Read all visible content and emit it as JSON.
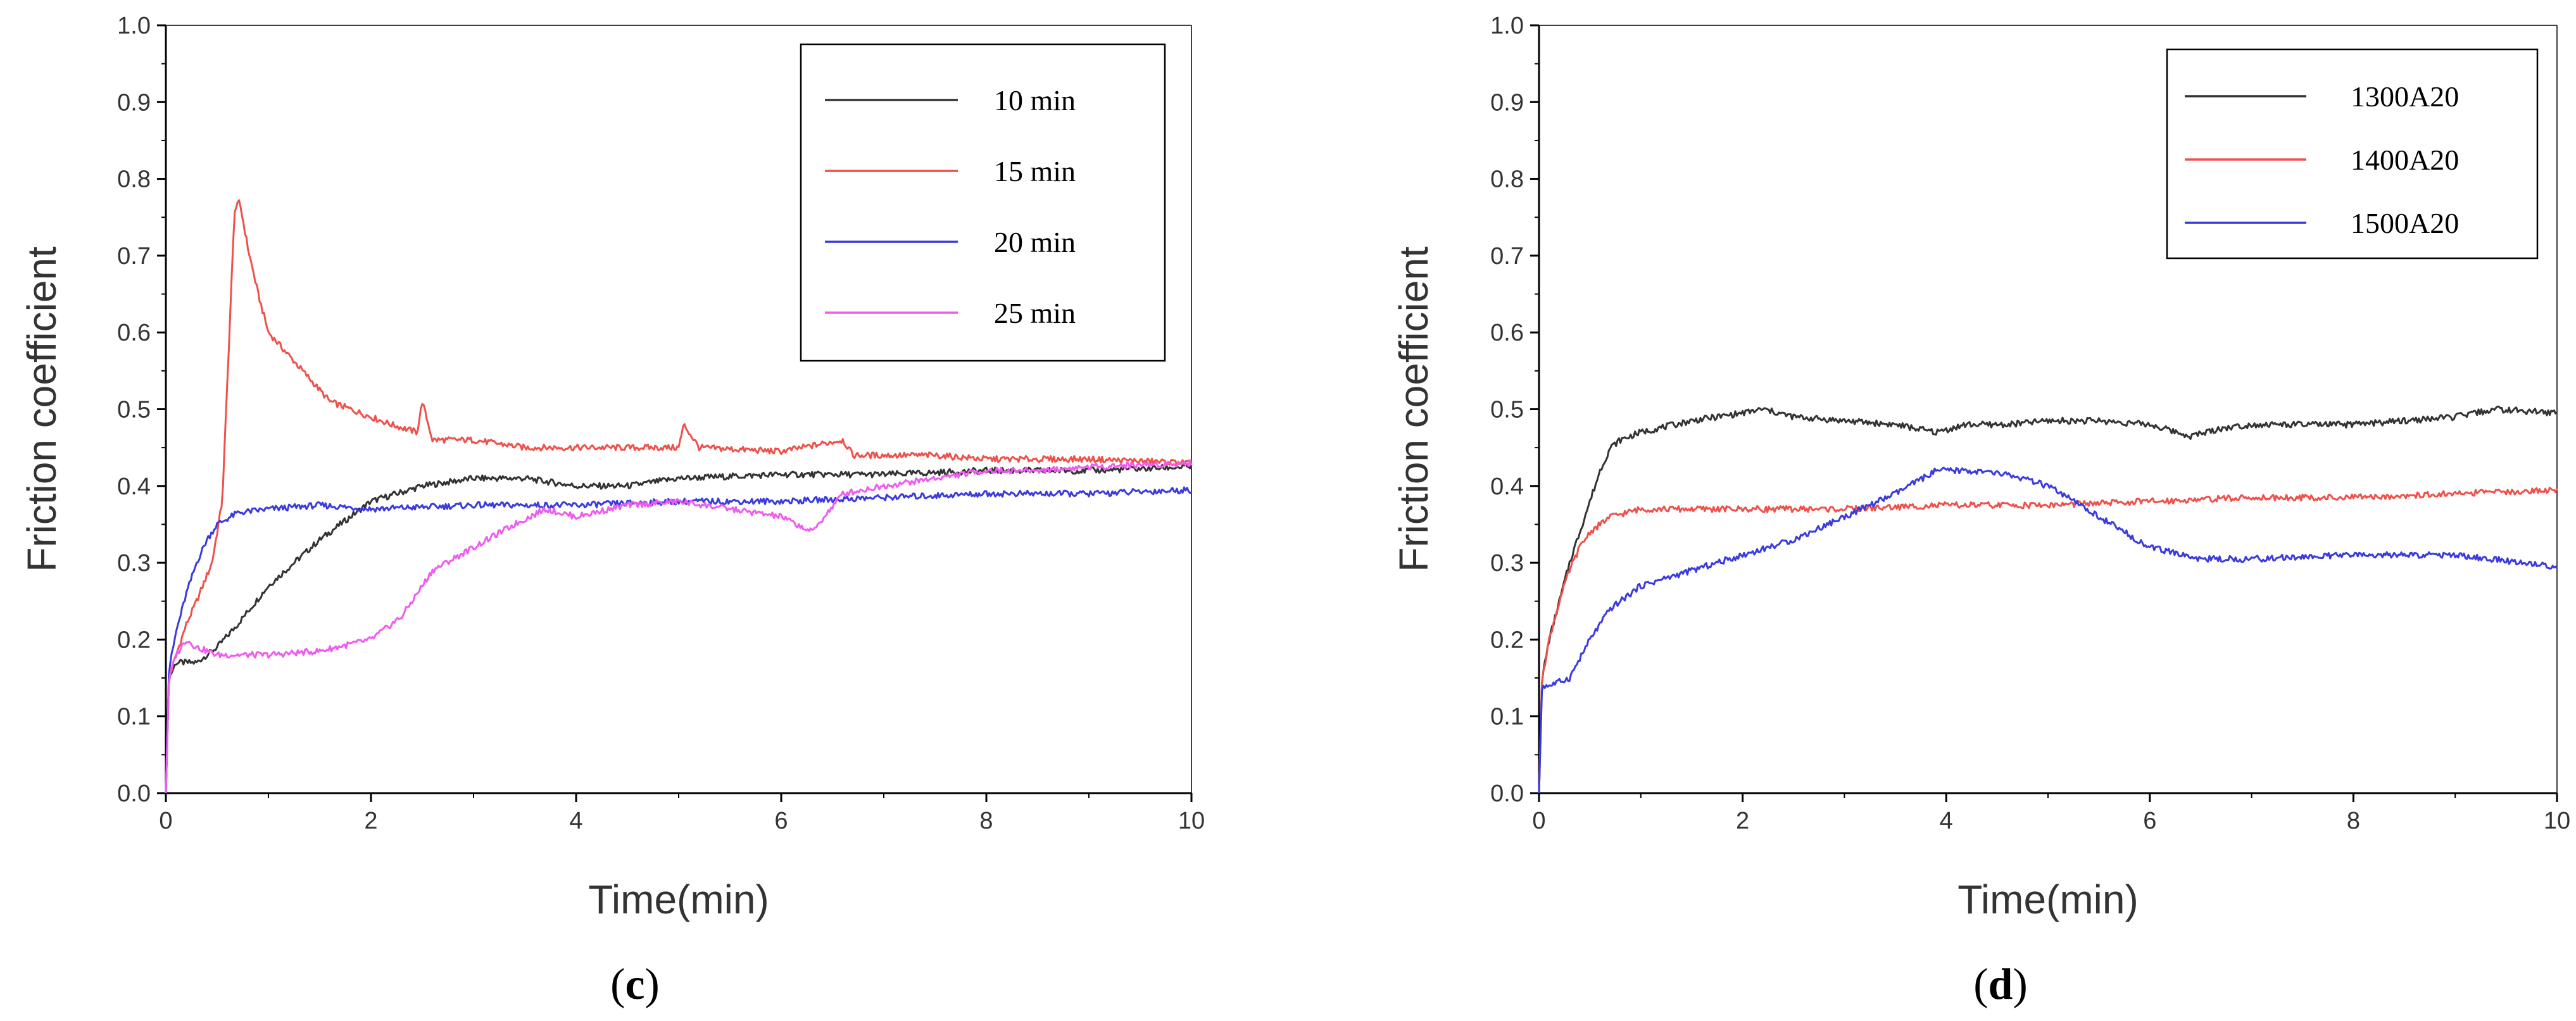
{
  "figure": {
    "panels": [
      {
        "caption_open": "(",
        "caption_letter": "c",
        "caption_close": ")"
      },
      {
        "caption_open": "(",
        "caption_letter": "d",
        "caption_close": ")"
      }
    ]
  },
  "chart_data": [
    {
      "type": "line",
      "title": "",
      "xlabel": "Time(min)",
      "ylabel": "Friction coefficient",
      "xlim": [
        0,
        10
      ],
      "ylim": [
        0,
        1.0
      ],
      "xticks": [
        0,
        2,
        4,
        6,
        8,
        10
      ],
      "xtick_labels": [
        "0",
        "2",
        "4",
        "6",
        "8",
        "10"
      ],
      "yticks": [
        0,
        0.1,
        0.2,
        0.3,
        0.4,
        0.5,
        0.6,
        0.7,
        0.8,
        0.9,
        1.0
      ],
      "ytick_labels": [
        "0.0",
        "0.1",
        "0.2",
        "0.3",
        "0.4",
        "0.5",
        "0.6",
        "0.7",
        "0.8",
        "0.9",
        "1.0"
      ],
      "grid": false,
      "legend_position": "top-right",
      "series": [
        {
          "name": "10 min",
          "color": "#333333",
          "x": [
            0,
            0.03,
            0.1,
            0.3,
            0.5,
            0.7,
            1.0,
            1.5,
            2.0,
            2.5,
            3.0,
            3.5,
            4.0,
            4.5,
            5.0,
            6.0,
            7.0,
            8.0,
            9.0,
            10.0
          ],
          "y": [
            0.0,
            0.15,
            0.17,
            0.17,
            0.19,
            0.22,
            0.27,
            0.33,
            0.38,
            0.4,
            0.41,
            0.41,
            0.4,
            0.4,
            0.41,
            0.415,
            0.415,
            0.42,
            0.42,
            0.425
          ]
        },
        {
          "name": "15 min",
          "color": "#f0504a",
          "x": [
            0,
            0.03,
            0.1,
            0.2,
            0.3,
            0.45,
            0.55,
            0.62,
            0.67,
            0.72,
            0.8,
            0.9,
            1.0,
            1.2,
            1.4,
            1.6,
            1.8,
            2.0,
            2.2,
            2.45,
            2.5,
            2.6,
            3.0,
            3.5,
            4.0,
            4.5,
            5.0,
            5.05,
            5.2,
            6.0,
            6.6,
            6.7,
            7.5,
            8.0,
            9.0,
            10.0
          ],
          "y": [
            0.0,
            0.15,
            0.18,
            0.22,
            0.25,
            0.3,
            0.38,
            0.6,
            0.76,
            0.77,
            0.71,
            0.65,
            0.6,
            0.57,
            0.54,
            0.51,
            0.5,
            0.49,
            0.48,
            0.47,
            0.51,
            0.46,
            0.46,
            0.45,
            0.45,
            0.45,
            0.45,
            0.48,
            0.45,
            0.445,
            0.46,
            0.44,
            0.44,
            0.435,
            0.435,
            0.43
          ]
        },
        {
          "name": "20 min",
          "color": "#3a3ae0",
          "x": [
            0,
            0.03,
            0.1,
            0.2,
            0.3,
            0.4,
            0.5,
            0.7,
            1.0,
            1.5,
            2.0,
            3.0,
            4.0,
            5.0,
            6.0,
            7.0,
            8.0,
            9.0,
            10.0
          ],
          "y": [
            0.0,
            0.16,
            0.21,
            0.26,
            0.3,
            0.33,
            0.35,
            0.365,
            0.37,
            0.375,
            0.37,
            0.375,
            0.375,
            0.38,
            0.38,
            0.385,
            0.39,
            0.39,
            0.395
          ]
        },
        {
          "name": "25 min",
          "color": "#f05af0",
          "x": [
            0,
            0.03,
            0.1,
            0.2,
            0.3,
            0.5,
            1.0,
            1.5,
            2.0,
            2.3,
            2.6,
            3.0,
            3.4,
            3.7,
            4.0,
            4.5,
            5.0,
            5.5,
            6.0,
            6.3,
            6.6,
            7.0,
            7.5,
            8.0,
            8.5,
            9.0,
            10.0
          ],
          "y": [
            0.0,
            0.15,
            0.18,
            0.2,
            0.19,
            0.18,
            0.18,
            0.185,
            0.2,
            0.23,
            0.29,
            0.32,
            0.35,
            0.37,
            0.36,
            0.375,
            0.38,
            0.37,
            0.36,
            0.34,
            0.39,
            0.4,
            0.41,
            0.42,
            0.42,
            0.425,
            0.43
          ]
        }
      ]
    },
    {
      "type": "line",
      "title": "",
      "xlabel": "Time(min)",
      "ylabel": "Friction coefficient",
      "xlim": [
        0,
        10
      ],
      "ylim": [
        0,
        1.0
      ],
      "xticks": [
        0,
        2,
        4,
        6,
        8,
        10
      ],
      "xtick_labels": [
        "0",
        "2",
        "4",
        "6",
        "8",
        "10"
      ],
      "yticks": [
        0,
        0.1,
        0.2,
        0.3,
        0.4,
        0.5,
        0.6,
        0.7,
        0.8,
        0.9,
        1.0
      ],
      "ytick_labels": [
        "0.0",
        "0.1",
        "0.2",
        "0.3",
        "0.4",
        "0.5",
        "0.6",
        "0.7",
        "0.8",
        "0.9",
        "1.0"
      ],
      "grid": false,
      "legend_position": "top-right",
      "series": [
        {
          "name": "1300A20",
          "color": "#333333",
          "x": [
            0,
            0.03,
            0.1,
            0.2,
            0.3,
            0.4,
            0.5,
            0.6,
            0.7,
            0.8,
            1.0,
            1.5,
            2.0,
            2.2,
            2.5,
            3.0,
            3.5,
            3.9,
            4.2,
            4.6,
            5.0,
            5.5,
            6.0,
            6.4,
            6.7,
            7.0,
            8.0,
            9.0,
            9.4,
            10.0
          ],
          "y": [
            0.0,
            0.15,
            0.2,
            0.25,
            0.3,
            0.34,
            0.38,
            0.42,
            0.45,
            0.46,
            0.47,
            0.485,
            0.495,
            0.5,
            0.49,
            0.485,
            0.48,
            0.47,
            0.48,
            0.48,
            0.485,
            0.485,
            0.48,
            0.465,
            0.475,
            0.48,
            0.48,
            0.49,
            0.5,
            0.495
          ]
        },
        {
          "name": "1400A20",
          "color": "#f0504a",
          "x": [
            0,
            0.03,
            0.1,
            0.2,
            0.3,
            0.4,
            0.5,
            0.7,
            1.0,
            1.5,
            2.0,
            3.0,
            4.0,
            5.0,
            6.0,
            7.0,
            8.0,
            9.0,
            10.0
          ],
          "y": [
            0.0,
            0.15,
            0.2,
            0.25,
            0.29,
            0.32,
            0.34,
            0.36,
            0.37,
            0.37,
            0.37,
            0.37,
            0.375,
            0.375,
            0.38,
            0.385,
            0.385,
            0.39,
            0.395
          ]
        },
        {
          "name": "1500A20",
          "color": "#3a3ae0",
          "x": [
            0,
            0.03,
            0.1,
            0.3,
            0.5,
            0.7,
            1.0,
            1.5,
            2.0,
            2.5,
            3.0,
            3.5,
            3.9,
            4.2,
            4.6,
            5.0,
            5.5,
            6.0,
            6.5,
            7.0,
            8.0,
            9.0,
            10.0
          ],
          "y": [
            0.0,
            0.14,
            0.14,
            0.15,
            0.2,
            0.24,
            0.27,
            0.29,
            0.31,
            0.33,
            0.36,
            0.39,
            0.42,
            0.42,
            0.415,
            0.4,
            0.36,
            0.32,
            0.305,
            0.305,
            0.31,
            0.31,
            0.295
          ]
        }
      ]
    }
  ]
}
